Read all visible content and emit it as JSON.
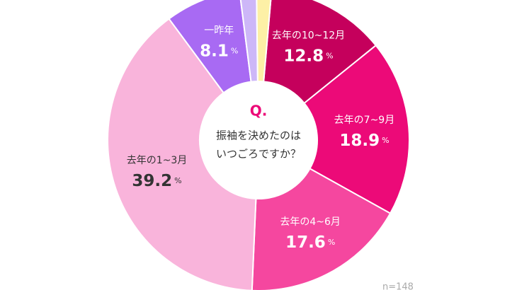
{
  "chart_data": {
    "type": "donut",
    "question_mark": "Q.",
    "question": [
      "振袖を決めたのは",
      "いつごろですか？"
    ],
    "categories": [
      "去年の10~12月",
      "去年の7~9月",
      "去年の4~6月",
      "去年の1~3月",
      "一昨年",
      null,
      null
    ],
    "values": [
      12.8,
      18.9,
      17.6,
      39.2,
      8.1,
      1.8,
      1.6
    ],
    "colors": [
      "#c5005c",
      "#ec0a78",
      "#f5479f",
      "#f9b4db",
      "#a86af3",
      "#cdb7f8",
      "#fdf0a6"
    ],
    "unit": "%",
    "note": "n=148"
  }
}
